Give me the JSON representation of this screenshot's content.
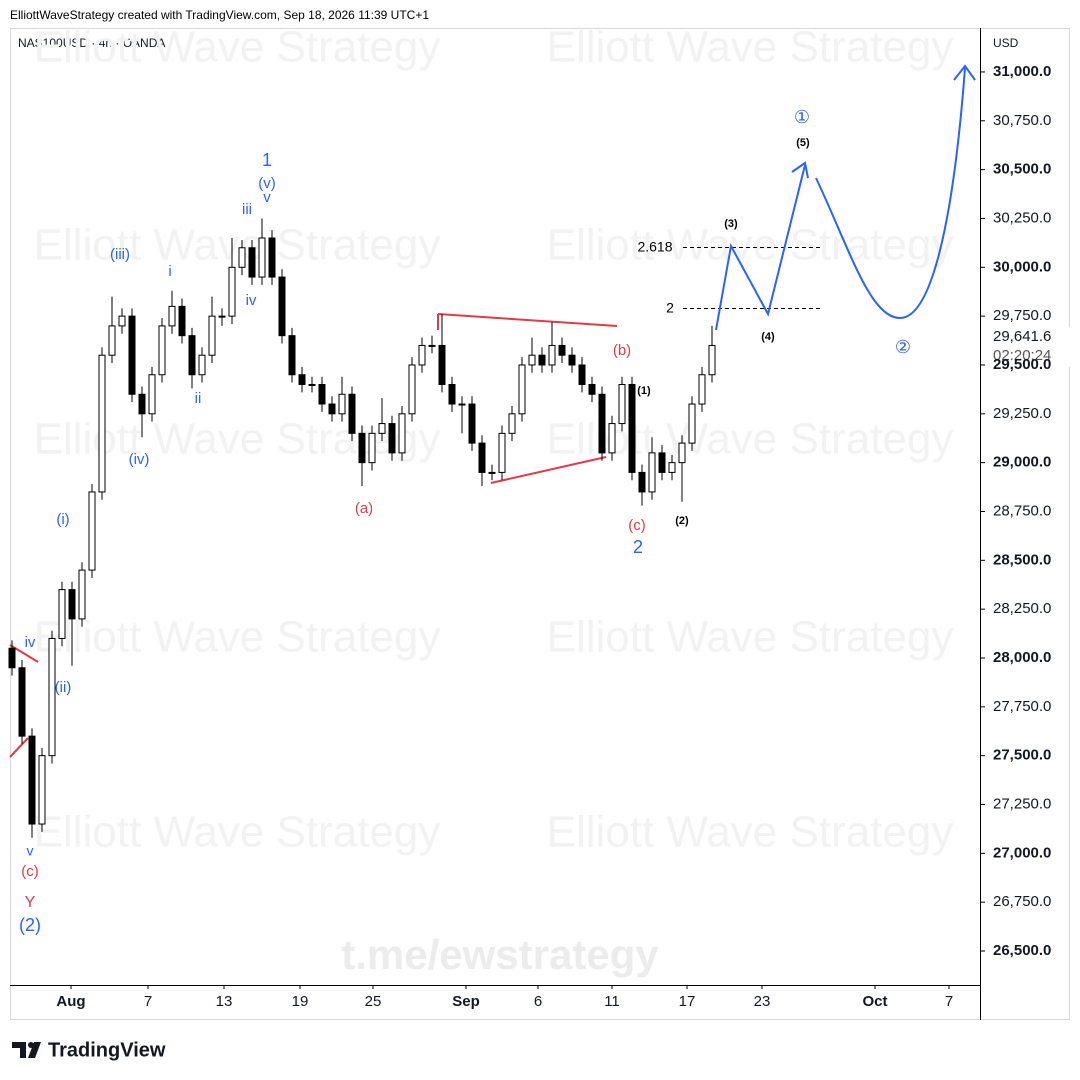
{
  "chart_data": {
    "type": "candlestick",
    "attribution": "ElliottWaveStrategy created with TradingView.com, Sep 18, 2026 11:39 UTC+1",
    "title": "NAS100USD · 4h · OANDA",
    "currency": "USD",
    "open": [
      28050,
      27950,
      27600,
      27150,
      27500,
      28100,
      28350,
      28200,
      28450,
      28850,
      29550,
      29700,
      29750,
      29350,
      29250,
      29450,
      29700,
      29800,
      29650,
      29450,
      29550,
      29750,
      29750,
      30000,
      30100,
      29950,
      30150,
      29950,
      29650,
      29450,
      29400,
      29400,
      29300,
      29250,
      29350,
      29150,
      29000,
      29150,
      29200,
      29050,
      29250,
      29500,
      29600,
      29600,
      29400,
      29300,
      29300,
      29100,
      28950,
      28950,
      29150,
      29250,
      29500,
      29550,
      29500,
      29600,
      29550,
      29500,
      29400,
      29350,
      29050,
      29200,
      29400,
      28950,
      28850,
      29050,
      28950,
      29000,
      29100,
      29300,
      29450
    ],
    "high": [
      28090,
      27990,
      27640,
      27540,
      28140,
      28390,
      28390,
      28490,
      28890,
      29590,
      29850,
      29790,
      29790,
      29390,
      29490,
      29740,
      29880,
      29840,
      29690,
      29590,
      29850,
      29790,
      30150,
      30140,
      30140,
      30250,
      30190,
      29990,
      29690,
      29490,
      29440,
      29440,
      29340,
      29440,
      29390,
      29190,
      29190,
      29330,
      29240,
      29290,
      29540,
      29640,
      29650,
      29760,
      29440,
      29340,
      29340,
      29140,
      28990,
      29190,
      29290,
      29540,
      29640,
      29590,
      29720,
      29640,
      29590,
      29540,
      29440,
      29390,
      29240,
      29440,
      29440,
      28990,
      29130,
      29090,
      29040,
      29140,
      29340,
      29490,
      29700
    ],
    "low": [
      27910,
      27560,
      27080,
      27110,
      27460,
      28060,
      27960,
      28160,
      28410,
      28810,
      29510,
      29660,
      29310,
      29130,
      29210,
      29410,
      29660,
      29610,
      29380,
      29410,
      29510,
      29700,
      29710,
      29960,
      29910,
      29910,
      29910,
      29610,
      29410,
      29360,
      29360,
      29260,
      29210,
      29210,
      29110,
      28880,
      28960,
      29110,
      29010,
      29010,
      29210,
      29460,
      29560,
      29360,
      29260,
      29150,
      29060,
      28880,
      28910,
      28910,
      29110,
      29210,
      29460,
      29460,
      29460,
      29510,
      29460,
      29360,
      29310,
      29010,
      29010,
      29160,
      28910,
      28780,
      28810,
      28910,
      28910,
      28800,
      29060,
      29260,
      29410
    ],
    "close": [
      27950,
      27600,
      27150,
      27500,
      28100,
      28350,
      28200,
      28450,
      28850,
      29550,
      29700,
      29750,
      29350,
      29250,
      29450,
      29700,
      29800,
      29650,
      29450,
      29550,
      29750,
      29750,
      30000,
      30100,
      29950,
      30150,
      29950,
      29650,
      29450,
      29400,
      29400,
      29300,
      29250,
      29350,
      29150,
      29000,
      29150,
      29200,
      29050,
      29250,
      29500,
      29600,
      29600,
      29400,
      29300,
      29300,
      29100,
      28950,
      28950,
      29150,
      29250,
      29500,
      29550,
      29500,
      29600,
      29550,
      29500,
      29400,
      29350,
      29050,
      29200,
      29400,
      28950,
      28850,
      29050,
      28950,
      29000,
      29100,
      29300,
      29450,
      29600
    ],
    "up_color": "#ffffff",
    "down_color": "#000000",
    "wick_color": "#000000",
    "xlim": [
      -0.2,
      96.8
    ],
    "xticks": [
      {
        "value": 5.9,
        "label": "Aug"
      },
      {
        "value": 13.6,
        "label": "7"
      },
      {
        "value": 21.2,
        "label": "13"
      },
      {
        "value": 28.8,
        "label": "19"
      },
      {
        "value": 36.1,
        "label": "25"
      },
      {
        "value": 45.4,
        "label": "Sep"
      },
      {
        "value": 52.6,
        "label": "6"
      },
      {
        "value": 60,
        "label": "11"
      },
      {
        "value": 67.5,
        "label": "17"
      },
      {
        "value": 75,
        "label": "23"
      },
      {
        "value": 86.3,
        "label": "Oct"
      },
      {
        "value": 93.7,
        "label": "7"
      }
    ],
    "ylim": [
      26326,
      31225
    ],
    "yticks": [
      {
        "value": 31000,
        "label": "31,000.0"
      },
      {
        "value": 30750,
        "label": "30,750.0"
      },
      {
        "value": 30500,
        "label": "30,500.0"
      },
      {
        "value": 30250,
        "label": "30,250.0"
      },
      {
        "value": 30000,
        "label": "30,000.0"
      },
      {
        "value": 29750,
        "label": "29,750.0"
      },
      {
        "value": 29500,
        "label": "29,500.0"
      },
      {
        "value": 29250,
        "label": "29,250.0"
      },
      {
        "value": 29000,
        "label": "29,000.0"
      },
      {
        "value": 28750,
        "label": "28,750.0"
      },
      {
        "value": 28500,
        "label": "28,500.0"
      },
      {
        "value": 28250,
        "label": "28,250.0"
      },
      {
        "value": 28000,
        "label": "28,000.0"
      },
      {
        "value": 27750,
        "label": "27,750.0"
      },
      {
        "value": 27500,
        "label": "27,500.0"
      },
      {
        "value": 27250,
        "label": "27,250.0"
      },
      {
        "value": 27000,
        "label": "27,000.0"
      },
      {
        "value": 26750,
        "label": "26,750.0"
      },
      {
        "value": 26500,
        "label": "26,500.0"
      }
    ],
    "last_price": {
      "value": 29641.6,
      "label": "29,641.6"
    },
    "countdown": "02:20:24",
    "annotations": [
      {
        "text": "iv",
        "color": "#2962ff"
      },
      {
        "text": "(ii)",
        "color": "#2962ff"
      },
      {
        "text": "v",
        "color": "#2962ff"
      },
      {
        "text": "(c)",
        "color": "#e53946"
      },
      {
        "text": "Y",
        "color": "#e53946"
      },
      {
        "text": "(2)",
        "color": "#2962ff"
      },
      {
        "text": "(i)",
        "color": "#2962ff"
      },
      {
        "text": "(iii)",
        "color": "#2962ff"
      },
      {
        "text": "(iv)",
        "color": "#2962ff"
      },
      {
        "text": "i",
        "color": "#2962ff"
      },
      {
        "text": "ii",
        "color": "#2962ff"
      },
      {
        "text": "iii",
        "color": "#2962ff"
      },
      {
        "text": "iv",
        "color": "#2962ff"
      },
      {
        "text": "v",
        "color": "#2962ff"
      },
      {
        "text": "(v)",
        "color": "#2962ff"
      },
      {
        "text": "1",
        "color": "#2962ff"
      },
      {
        "text": "(a)",
        "color": "#e53946"
      },
      {
        "text": "(b)",
        "color": "#e53946"
      },
      {
        "text": "(c)",
        "color": "#e53946"
      },
      {
        "text": "2",
        "color": "#2962ff"
      },
      {
        "text": "(1)",
        "color": "#000000"
      },
      {
        "text": "(2)",
        "color": "#000000"
      },
      {
        "text": "(3)",
        "color": "#000000"
      },
      {
        "text": "(4)",
        "color": "#000000"
      },
      {
        "text": "(5)",
        "color": "#000000"
      },
      {
        "text": "①",
        "color": "#2962ff"
      },
      {
        "text": "②",
        "color": "#2962ff"
      },
      {
        "text": "2.618",
        "color": "#000000"
      },
      {
        "text": "2",
        "color": "#000000"
      }
    ],
    "watermark": "Elliott Wave Strategy",
    "link": "t.me/ewstrategy",
    "brand": "TradingView"
  }
}
